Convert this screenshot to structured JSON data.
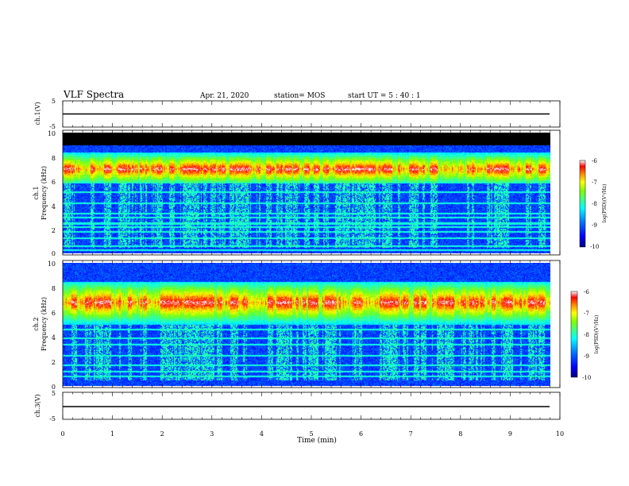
{
  "header": {
    "title": "VLF Spectra",
    "date": "Apr. 21, 2020",
    "station": "station= MOS",
    "start_time": "start  UT =   5 : 40 : 1"
  },
  "colors": {
    "colormap": [
      "#000080",
      "#0000ff",
      "#0080ff",
      "#00ffff",
      "#40ff80",
      "#80ff00",
      "#ffff00",
      "#ff8000",
      "#ff0000",
      "#ffffff"
    ],
    "trace": "#000000",
    "no_data": "#000000"
  },
  "chart_data": [
    {
      "type": "line",
      "panel": "ch1-voltage",
      "ylabel": "ch.1(V)",
      "ylim": [
        -5,
        5
      ],
      "yticks": [
        "5",
        "-5"
      ],
      "xlim": [
        0,
        10
      ],
      "x": [
        0,
        9.8
      ],
      "series": [
        {
          "values": [
            0,
            0
          ]
        }
      ]
    },
    {
      "type": "heatmap",
      "panel": "ch1-spectrogram",
      "ylabel_line1": "ch.1",
      "ylabel_line2": "Frequency (kHz)",
      "ylim": [
        0,
        10
      ],
      "yticks": [
        "0",
        "2",
        "4",
        "6",
        "8",
        "10"
      ],
      "xlim": [
        0,
        10
      ],
      "data_xmax": 9.8,
      "no_data_above_khz": 9.0,
      "emission_band_khz": [
        5.8,
        8.4
      ],
      "peak_khz": 7.0,
      "narrowband_lines_khz": [
        0.3,
        0.6,
        1.3,
        1.8,
        2.2,
        2.5,
        3.0,
        3.3,
        4.2,
        5.1
      ],
      "colorbar": {
        "label": "log(PSD)(V²/Hz)",
        "min": -10,
        "max": -6,
        "ticks": [
          "-6",
          "-7",
          "-8",
          "-9",
          "-10"
        ]
      }
    },
    {
      "type": "heatmap",
      "panel": "ch2-spectrogram",
      "ylabel_line1": "ch.2",
      "ylabel_line2": "Frequency (kHz)",
      "ylim": [
        0,
        10
      ],
      "yticks": [
        "0",
        "2",
        "4",
        "6",
        "8",
        "10"
      ],
      "xlim": [
        0,
        10
      ],
      "data_xmax": 9.8,
      "emission_band_khz": [
        5.0,
        8.5
      ],
      "peak_khz": 6.8,
      "narrowband_lines_khz": [
        0.8,
        1.2,
        1.7,
        2.5,
        3.4,
        3.9,
        4.6
      ],
      "colorbar": {
        "label": "log(PSD)(V²/Hz)",
        "min": -10,
        "max": -6,
        "ticks": [
          "-6",
          "-7",
          "-8",
          "-9",
          "-10"
        ]
      }
    },
    {
      "type": "line",
      "panel": "ch3-voltage",
      "ylabel": "ch.3(V)",
      "ylim": [
        -5,
        5
      ],
      "yticks": [
        "5",
        "-5"
      ],
      "xlim": [
        0,
        10
      ],
      "x": [
        0,
        9.8
      ],
      "series": [
        {
          "values": [
            0,
            0
          ]
        }
      ]
    }
  ],
  "xaxis": {
    "label": "Time  (min)",
    "ticks": [
      "0",
      "1",
      "2",
      "3",
      "4",
      "5",
      "6",
      "7",
      "8",
      "9",
      "10"
    ]
  }
}
